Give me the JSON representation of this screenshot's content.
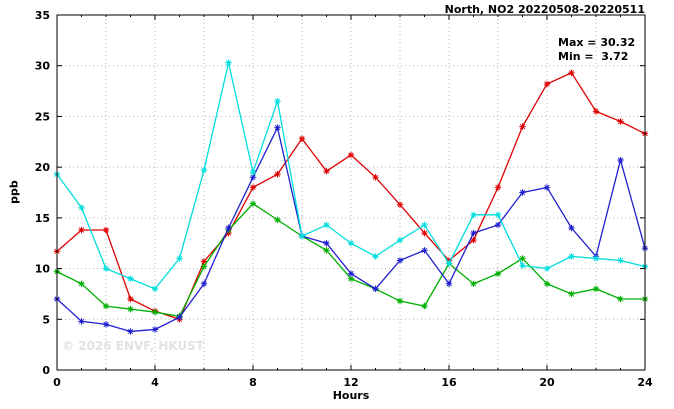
{
  "title": "North, NO2 20220508-20220511",
  "annotation": {
    "max_label": "Max = 30.32",
    "min_label": "Min =  3.72"
  },
  "watermark": "© 2026 ENVF, HKUST",
  "chart_data": {
    "type": "line",
    "title": "North, NO2 20220508-20220511",
    "xlabel": "Hours",
    "ylabel": "ppb",
    "xlim": [
      0,
      24
    ],
    "ylim": [
      0,
      35
    ],
    "x_ticks": [
      0,
      4,
      8,
      12,
      16,
      20,
      24
    ],
    "y_ticks": [
      0,
      5,
      10,
      15,
      20,
      25,
      30,
      35
    ],
    "grid": true,
    "legend": "none",
    "marker": "asterisk",
    "max": 30.32,
    "min": 3.72,
    "x": [
      0,
      1,
      2,
      3,
      4,
      5,
      6,
      7,
      8,
      9,
      10,
      11,
      12,
      13,
      14,
      15,
      16,
      17,
      18,
      19,
      20,
      21,
      22,
      23,
      24
    ],
    "series": [
      {
        "name": "series-red",
        "color": "#e00000",
        "values": [
          11.7,
          13.8,
          13.8,
          7.0,
          5.8,
          5.0,
          10.7,
          13.5,
          18.0,
          19.3,
          22.8,
          19.6,
          21.2,
          19.0,
          16.3,
          13.5,
          10.8,
          12.8,
          18.0,
          24.0,
          28.2,
          29.3,
          25.5,
          24.5,
          23.3
        ]
      },
      {
        "name": "series-green",
        "color": "#00b000",
        "values": [
          9.7,
          8.5,
          6.3,
          6.0,
          5.7,
          5.3,
          10.2,
          13.8,
          16.4,
          14.8,
          13.2,
          11.8,
          9.0,
          8.0,
          6.8,
          6.3,
          10.5,
          8.5,
          9.5,
          11.0,
          8.5,
          7.5,
          8.0,
          7.0,
          7.0
        ]
      },
      {
        "name": "series-blue",
        "color": "#2020d0",
        "values": [
          7.0,
          4.8,
          4.5,
          3.8,
          4.0,
          5.2,
          8.5,
          14.0,
          19.0,
          23.9,
          13.2,
          12.5,
          9.5,
          8.0,
          10.8,
          11.8,
          8.5,
          13.5,
          14.3,
          17.5,
          18.0,
          14.0,
          11.2,
          20.7,
          12.0
        ]
      },
      {
        "name": "series-cyan",
        "color": "#00dede",
        "values": [
          19.3,
          16.0,
          10.0,
          9.0,
          8.0,
          11.0,
          19.7,
          30.3,
          19.5,
          26.5,
          13.2,
          14.3,
          12.5,
          11.2,
          12.8,
          14.3,
          10.5,
          15.3,
          15.3,
          10.3,
          10.0,
          11.2,
          11.0,
          10.8,
          10.2
        ]
      }
    ]
  }
}
